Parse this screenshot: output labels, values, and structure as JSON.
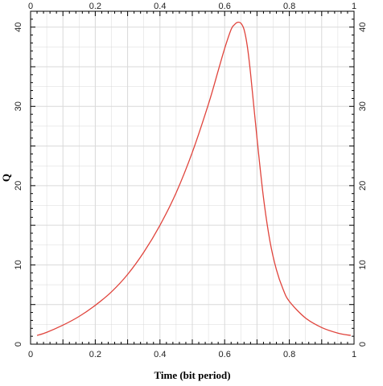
{
  "chart_data": {
    "type": "line",
    "title": "",
    "xlabel": "Time (bit period)",
    "ylabel": "Q",
    "xlim": [
      0,
      1
    ],
    "ylim": [
      0,
      42
    ],
    "x_ticks": [
      0,
      0.2,
      0.4,
      0.6,
      0.8,
      1
    ],
    "x_tick_labels": [
      "0",
      "0.2",
      "0.4",
      "0.6",
      "0.8",
      "1"
    ],
    "y_ticks": [
      0,
      10,
      20,
      30,
      40
    ],
    "y_tick_labels": [
      "0",
      "10",
      "20",
      "30",
      "40"
    ],
    "grid": true,
    "legend": "none",
    "colors": {
      "series": "#e0443c",
      "grid": "#d9d9d9",
      "axis": "#000000"
    },
    "series": [
      {
        "x": [
          0.02,
          0.05,
          0.1,
          0.15,
          0.2,
          0.25,
          0.3,
          0.35,
          0.4,
          0.45,
          0.5,
          0.55,
          0.58,
          0.6,
          0.62,
          0.63,
          0.64,
          0.65,
          0.66,
          0.67,
          0.68,
          0.7,
          0.72,
          0.74,
          0.76,
          0.78,
          0.8,
          0.85,
          0.9,
          0.95,
          0.99
        ],
        "y": [
          1.1,
          1.5,
          2.4,
          3.5,
          4.9,
          6.6,
          8.8,
          11.6,
          15.0,
          19.1,
          24.2,
          30.3,
          34.5,
          37.3,
          39.7,
          40.3,
          40.6,
          40.5,
          39.7,
          37.6,
          34.2,
          26.0,
          18.5,
          13.0,
          9.4,
          7.0,
          5.4,
          3.3,
          2.1,
          1.4,
          1.1
        ]
      }
    ]
  }
}
